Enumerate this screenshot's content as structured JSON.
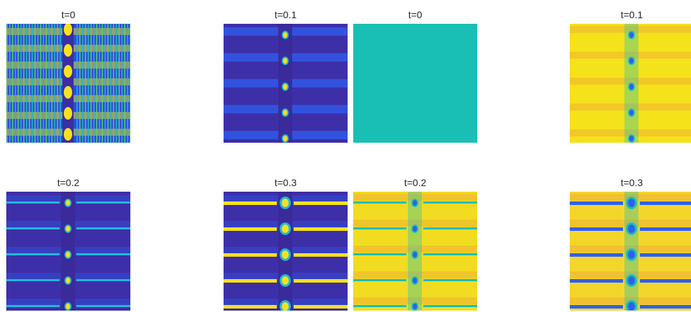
{
  "panels": [
    {
      "id": "p1",
      "title": "t=0",
      "variant": "stripes-v",
      "bg": "#3a3fd0"
    },
    {
      "id": "p2",
      "title": "t=0.1",
      "variant": "dark-light",
      "bg": "#3d2fa8"
    },
    {
      "id": "p3",
      "title": "t=0",
      "variant": "flat",
      "bg": "#19bfb5"
    },
    {
      "id": "p4",
      "title": "t=0.1",
      "variant": "yellow-dots",
      "bg": "#f4e21a"
    },
    {
      "id": "p5",
      "title": "t=0.2",
      "variant": "dark-lines",
      "bg": "#3d2fa8"
    },
    {
      "id": "p6",
      "title": "t=0.3",
      "variant": "dark-lines-strong",
      "bg": "#3d2fa8"
    },
    {
      "id": "p7",
      "title": "t=0.2",
      "variant": "yellow-lines",
      "bg": "#f1dc22"
    },
    {
      "id": "p8",
      "title": "t=0.3",
      "variant": "yellow-lines-strong",
      "bg": "#f4d62a"
    }
  ],
  "colors": {
    "dark_blue": "#3d2fa8",
    "blue": "#2f5ff0",
    "cyan": "#22b8d8",
    "teal": "#19bfb5",
    "yellow": "#f6e21a",
    "orange": "#f0a93a",
    "green": "#66cc66"
  }
}
